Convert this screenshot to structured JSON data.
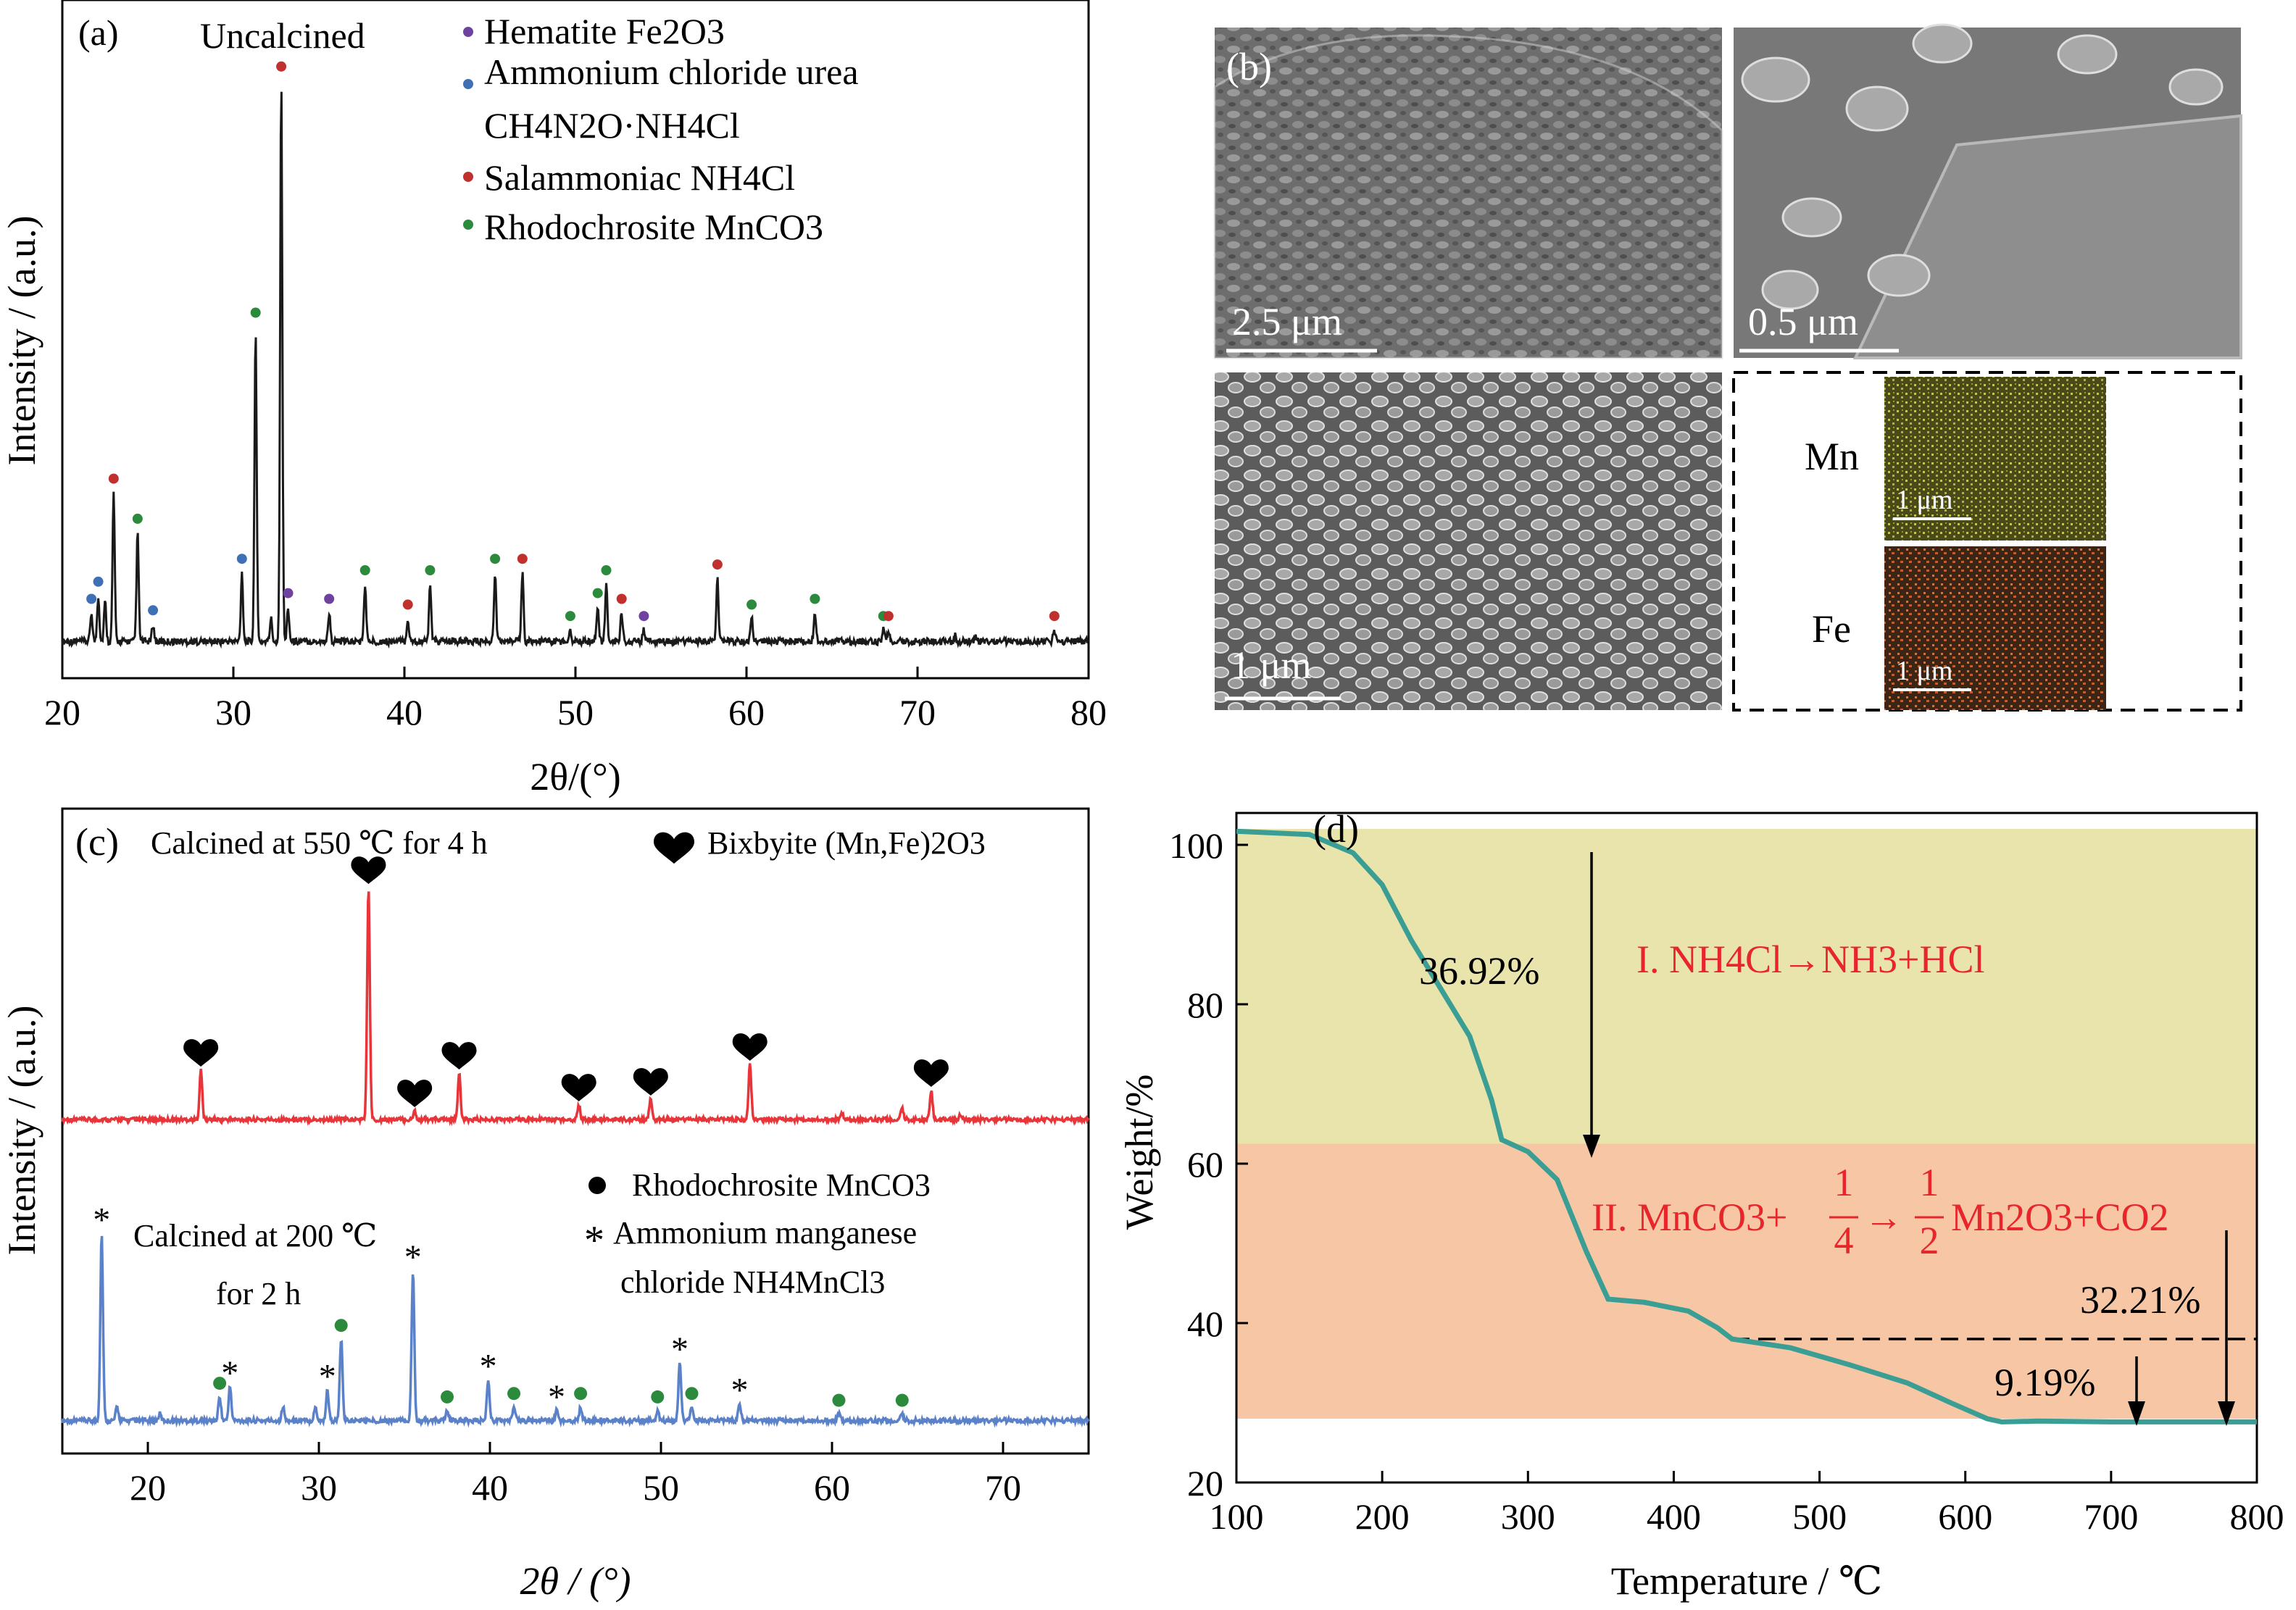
{
  "colors": {
    "salammoniac": "#c0302d",
    "ammonium_chloride_urea": "#3f6fb5",
    "hematite": "#7042a0",
    "rhodochrosite": "#2c8a3c",
    "calcined_550": "#e8353a",
    "calcined_200": "#5b82c9",
    "tg_curve": "#3a9e94",
    "region_I": "#e8e4ab",
    "region_II": "#f7c6a4",
    "equation_red": "#e8252b",
    "edx_mn": "#c9c83c",
    "edx_fe": "#d8733c"
  },
  "panel_a": {
    "label": "(a)",
    "sample": "Uncalcined",
    "legend": [
      {
        "name": "Hematite Fe2O3",
        "color_key": "hematite"
      },
      {
        "name": "Ammonium chloride urea",
        "color_key": "ammonium_chloride_urea"
      },
      {
        "name": "CH4N2O·NH4Cl",
        "color_key": ""
      },
      {
        "name": "Salammoniac NH4Cl",
        "color_key": "salammoniac"
      },
      {
        "name": "Rhodochrosite MnCO3",
        "color_key": "rhodochrosite"
      }
    ]
  },
  "panel_b": {
    "label": "(b)",
    "scale_bars": [
      "2.5 μm",
      "0.5 μm",
      "1 μm"
    ],
    "edx": [
      {
        "element": "Mn",
        "scale": "1 μm",
        "color_key": "edx_mn"
      },
      {
        "element": "Fe",
        "scale": "1 μm",
        "color_key": "edx_fe"
      }
    ]
  },
  "panel_c": {
    "label": "(c)",
    "top_sample": "Calcined at 550 ℃ for 4 h",
    "top_legend": "Bixbyite (Mn,Fe)2O3",
    "rhodo_legend": "Rhodochrosite MnCO3",
    "bottom_sample_1": "Calcined at 200 ℃",
    "bottom_sample_2": "for 2 h",
    "amc_legend_1": "Ammonium manganese",
    "amc_legend_2": "chloride NH4MnCl3"
  },
  "panel_d": {
    "label": "(d)",
    "loss_1": "36.92%",
    "loss_total": "32.21%",
    "loss_3": "9.19%",
    "eq1": "I. NH4Cl→NH3+HCl",
    "eq2_prefix": "II. MnCO3+",
    "eq2_frac1_num": "1",
    "eq2_frac1_den": "4",
    "eq2_arrow": "→",
    "eq2_frac2_num": "1",
    "eq2_frac2_den": "2",
    "eq2_suffix": "Mn2O3+CO2"
  },
  "chart_data": [
    {
      "type": "line",
      "panel": "(a)",
      "xlabel": "2θ/(°)",
      "ylabel": "Intensity / (a.u.)",
      "xlim": [
        20,
        80
      ],
      "xticks": [
        20,
        30,
        40,
        50,
        60,
        70,
        80
      ],
      "yticks": [],
      "series": [
        {
          "peaks": [
            {
              "x": 21.7,
              "h": 0.05,
              "phase": "ammonium_chloride_urea"
            },
            {
              "x": 22.1,
              "h": 0.08,
              "phase": "ammonium_chloride_urea"
            },
            {
              "x": 22.5,
              "h": 0.07,
              "phase": ""
            },
            {
              "x": 23.0,
              "h": 0.26,
              "phase": "salammoniac"
            },
            {
              "x": 24.4,
              "h": 0.19,
              "phase": "rhodochrosite"
            },
            {
              "x": 25.3,
              "h": 0.03,
              "phase": "ammonium_chloride_urea"
            },
            {
              "x": 30.5,
              "h": 0.12,
              "phase": "ammonium_chloride_urea"
            },
            {
              "x": 31.3,
              "h": 0.55,
              "phase": "rhodochrosite"
            },
            {
              "x": 32.2,
              "h": 0.04,
              "phase": ""
            },
            {
              "x": 32.8,
              "h": 0.98,
              "phase": "salammoniac"
            },
            {
              "x": 33.2,
              "h": 0.06,
              "phase": "hematite"
            },
            {
              "x": 35.6,
              "h": 0.05,
              "phase": "hematite"
            },
            {
              "x": 37.7,
              "h": 0.1,
              "phase": "rhodochrosite"
            },
            {
              "x": 40.2,
              "h": 0.04,
              "phase": "salammoniac"
            },
            {
              "x": 41.5,
              "h": 0.1,
              "phase": "rhodochrosite"
            },
            {
              "x": 45.3,
              "h": 0.12,
              "phase": "rhodochrosite"
            },
            {
              "x": 46.9,
              "h": 0.12,
              "phase": "salammoniac"
            },
            {
              "x": 49.7,
              "h": 0.02,
              "phase": "rhodochrosite"
            },
            {
              "x": 51.3,
              "h": 0.06,
              "phase": "rhodochrosite"
            },
            {
              "x": 51.8,
              "h": 0.1,
              "phase": "rhodochrosite"
            },
            {
              "x": 52.7,
              "h": 0.05,
              "phase": "salammoniac"
            },
            {
              "x": 54.0,
              "h": 0.02,
              "phase": "hematite"
            },
            {
              "x": 58.3,
              "h": 0.11,
              "phase": "salammoniac"
            },
            {
              "x": 60.3,
              "h": 0.04,
              "phase": "rhodochrosite"
            },
            {
              "x": 64.0,
              "h": 0.05,
              "phase": "rhodochrosite"
            },
            {
              "x": 68.0,
              "h": 0.02,
              "phase": "rhodochrosite"
            },
            {
              "x": 68.3,
              "h": 0.02,
              "phase": "salammoniac"
            },
            {
              "x": 72.2,
              "h": 0.01,
              "phase": ""
            },
            {
              "x": 73.4,
              "h": 0.01,
              "phase": ""
            },
            {
              "x": 78.0,
              "h": 0.02,
              "phase": "salammoniac"
            }
          ]
        }
      ]
    },
    {
      "type": "line",
      "panel": "(c)",
      "xlabel": "2θ / (°)",
      "ylabel": "Intensity / (a.u.)",
      "xlim": [
        15,
        75
      ],
      "xticks": [
        20,
        30,
        40,
        50,
        60,
        70
      ],
      "yticks": [],
      "series": [
        {
          "color_key": "calcined_550",
          "peaks": [
            {
              "x": 23.1,
              "h": 0.17,
              "marker": "heart"
            },
            {
              "x": 32.9,
              "h": 0.8,
              "marker": "heart"
            },
            {
              "x": 35.6,
              "h": 0.03,
              "marker": "heart"
            },
            {
              "x": 38.2,
              "h": 0.16,
              "marker": "heart"
            },
            {
              "x": 45.2,
              "h": 0.05,
              "marker": "heart"
            },
            {
              "x": 49.4,
              "h": 0.07,
              "marker": "heart"
            },
            {
              "x": 55.2,
              "h": 0.19,
              "marker": "heart"
            },
            {
              "x": 60.6,
              "h": 0.02,
              "marker": ""
            },
            {
              "x": 64.1,
              "h": 0.04,
              "marker": ""
            },
            {
              "x": 65.8,
              "h": 0.1,
              "marker": "heart"
            },
            {
              "x": 67.5,
              "h": 0.02,
              "marker": ""
            }
          ]
        },
        {
          "color_key": "calcined_200",
          "peaks": [
            {
              "x": 17.3,
              "h": 0.55,
              "marker": "star"
            },
            {
              "x": 18.2,
              "h": 0.04,
              "marker": ""
            },
            {
              "x": 20.7,
              "h": 0.02,
              "marker": ""
            },
            {
              "x": 24.2,
              "h": 0.07,
              "marker": "dot"
            },
            {
              "x": 24.8,
              "h": 0.1,
              "marker": "star"
            },
            {
              "x": 27.9,
              "h": 0.04,
              "marker": ""
            },
            {
              "x": 29.8,
              "h": 0.04,
              "marker": ""
            },
            {
              "x": 30.5,
              "h": 0.09,
              "marker": "star"
            },
            {
              "x": 31.3,
              "h": 0.24,
              "marker": "dot"
            },
            {
              "x": 35.5,
              "h": 0.44,
              "marker": "star"
            },
            {
              "x": 37.5,
              "h": 0.03,
              "marker": "dot"
            },
            {
              "x": 39.9,
              "h": 0.12,
              "marker": "star"
            },
            {
              "x": 41.4,
              "h": 0.04,
              "marker": "dot"
            },
            {
              "x": 43.9,
              "h": 0.03,
              "marker": "star"
            },
            {
              "x": 45.3,
              "h": 0.04,
              "marker": "dot"
            },
            {
              "x": 49.8,
              "h": 0.03,
              "marker": "dot"
            },
            {
              "x": 51.1,
              "h": 0.17,
              "marker": "star"
            },
            {
              "x": 51.8,
              "h": 0.04,
              "marker": "dot"
            },
            {
              "x": 54.6,
              "h": 0.05,
              "marker": "star"
            },
            {
              "x": 60.4,
              "h": 0.02,
              "marker": "dot"
            },
            {
              "x": 64.1,
              "h": 0.02,
              "marker": "dot"
            }
          ]
        }
      ]
    },
    {
      "type": "line",
      "panel": "(d)",
      "xlabel": "Temperature / ℃",
      "ylabel": "Weight/%",
      "xlim": [
        100,
        800
      ],
      "ylim": [
        20,
        100
      ],
      "xticks": [
        100,
        200,
        300,
        400,
        500,
        600,
        700,
        800
      ],
      "yticks": [
        20,
        40,
        60,
        80,
        100
      ],
      "regions": [
        {
          "name": "I",
          "y_from": 62.5,
          "y_to": 102,
          "color_key": "region_I"
        },
        {
          "name": "II",
          "y_from": 28.0,
          "y_to": 62.5,
          "color_key": "region_II"
        }
      ],
      "series": [
        {
          "color_key": "tg_curve",
          "points": [
            [
              100,
              101.7
            ],
            [
              150,
              101.3
            ],
            [
              180,
              99
            ],
            [
              200,
              95
            ],
            [
              220,
              88
            ],
            [
              240,
              82
            ],
            [
              260,
              76
            ],
            [
              275,
              68
            ],
            [
              282,
              63
            ],
            [
              300,
              61.5
            ],
            [
              320,
              58
            ],
            [
              340,
              49
            ],
            [
              355,
              43
            ],
            [
              380,
              42.6
            ],
            [
              410,
              41.5
            ],
            [
              430,
              39.4
            ],
            [
              440,
              38
            ],
            [
              480,
              36.9
            ],
            [
              520,
              34.8
            ],
            [
              560,
              32.5
            ],
            [
              590,
              30
            ],
            [
              615,
              28
            ],
            [
              625,
              27.6
            ],
            [
              650,
              27.7
            ],
            [
              700,
              27.6
            ],
            [
              750,
              27.6
            ],
            [
              800,
              27.6
            ]
          ]
        }
      ],
      "dashed_level_y": 38
    }
  ]
}
